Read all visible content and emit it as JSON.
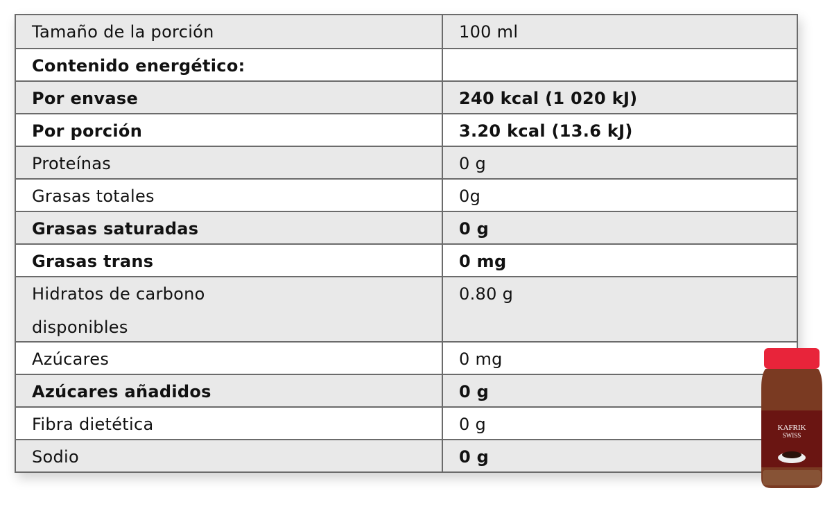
{
  "rows": [
    {
      "label": "Tamaño de la porción",
      "value": "100 ml",
      "bold_label": false,
      "bold_value": false
    },
    {
      "label": "Contenido energético:",
      "value": "",
      "bold_label": true,
      "bold_value": false
    },
    {
      "label": "Por envase",
      "value": "240 kcal (1 020 kJ)",
      "bold_label": true,
      "bold_value": true
    },
    {
      "label": "Por porción",
      "value": "3.20 kcal (13.6 kJ)",
      "bold_label": true,
      "bold_value": true
    },
    {
      "label": "Proteínas",
      "value": "0 g",
      "bold_label": false,
      "bold_value": false
    },
    {
      "label": "Grasas totales",
      "value": "0g",
      "bold_label": false,
      "bold_value": false
    },
    {
      "label": "Grasas saturadas",
      "value": "0 g",
      "bold_label": true,
      "bold_value": true
    },
    {
      "label": "Grasas trans",
      "value": "0 mg",
      "bold_label": true,
      "bold_value": true
    },
    {
      "label": "Hidratos de carbono disponibles",
      "value": "0.80 g",
      "bold_label": false,
      "bold_value": false
    },
    {
      "label": "Azúcares",
      "value": "0 mg",
      "bold_label": false,
      "bold_value": false
    },
    {
      "label": "Azúcares añadidos",
      "value": "0 g",
      "bold_label": true,
      "bold_value": true
    },
    {
      "label": "Fibra dietética",
      "value": "0 g",
      "bold_label": false,
      "bold_value": false
    },
    {
      "label": "Sodio",
      "value": "0 g",
      "bold_label": false,
      "bold_value": true
    }
  ],
  "product": {
    "brand_line1": "KAFRIK",
    "brand_line2": "SWISS",
    "lid_color": "#e8243a",
    "label_color": "#6a1512"
  }
}
